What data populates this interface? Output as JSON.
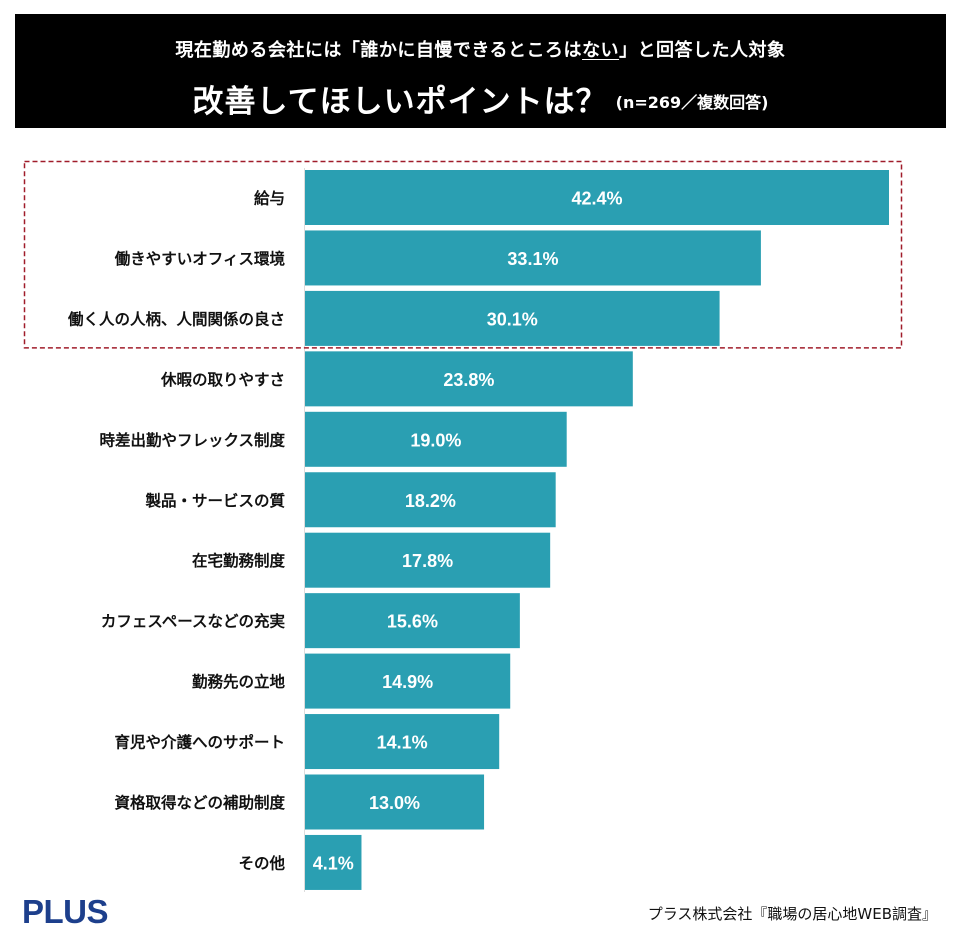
{
  "header": {
    "subtitle_pre": "現在勤める会社には「誰かに自慢できるところは",
    "subtitle_underlined": "ない",
    "subtitle_post": "」と回答した人対象",
    "title": "改善してほしいポイントは？",
    "title_note": "(n=269／複数回答)"
  },
  "chart_data": {
    "type": "bar",
    "orientation": "horizontal",
    "title": "改善してほしいポイントは？",
    "subtitle": "現在勤める会社には「誰かに自慢できるところはない」と回答した人対象 (n=269／複数回答)",
    "categories": [
      "給与",
      "働きやすいオフィス環境",
      "働く人の人柄、人間関係の良さ",
      "休暇の取りやすさ",
      "時差出勤やフレックス制度",
      "製品・サービスの質",
      "在宅勤務制度",
      "カフェスペースなどの充実",
      "勤務先の立地",
      "育児や介護へのサポート",
      "資格取得などの補助制度",
      "その他"
    ],
    "values": [
      42.4,
      33.1,
      30.1,
      23.8,
      19.0,
      18.2,
      17.8,
      15.6,
      14.9,
      14.1,
      13.0,
      4.1
    ],
    "value_labels": [
      "42.4%",
      "33.1%",
      "30.1%",
      "23.8%",
      "19.0%",
      "18.2%",
      "17.8%",
      "15.6%",
      "14.9%",
      "14.1%",
      "13.0%",
      "4.1%"
    ],
    "unit": "%",
    "xlabel": "",
    "ylabel": "",
    "xlim": [
      0,
      42.4
    ],
    "grid": false,
    "legend": "none",
    "highlighted_categories": [
      "給与",
      "働きやすいオフィス環境",
      "働く人の人柄、人間関係の良さ"
    ],
    "bar_color": "#2a9fb2",
    "highlight_border_color": "#a01c2a"
  },
  "footer": {
    "logo": "PLUS",
    "source": "プラス株式会社『職場の居心地WEB調査』"
  },
  "colors": {
    "header_bg": "#000000",
    "header_text": "#ffffff",
    "bar": "#2a9fb2",
    "bar_label": "#ffffff",
    "category_text": "#111111",
    "highlight_border": "#a01c2a",
    "logo": "#1d3f8c"
  }
}
